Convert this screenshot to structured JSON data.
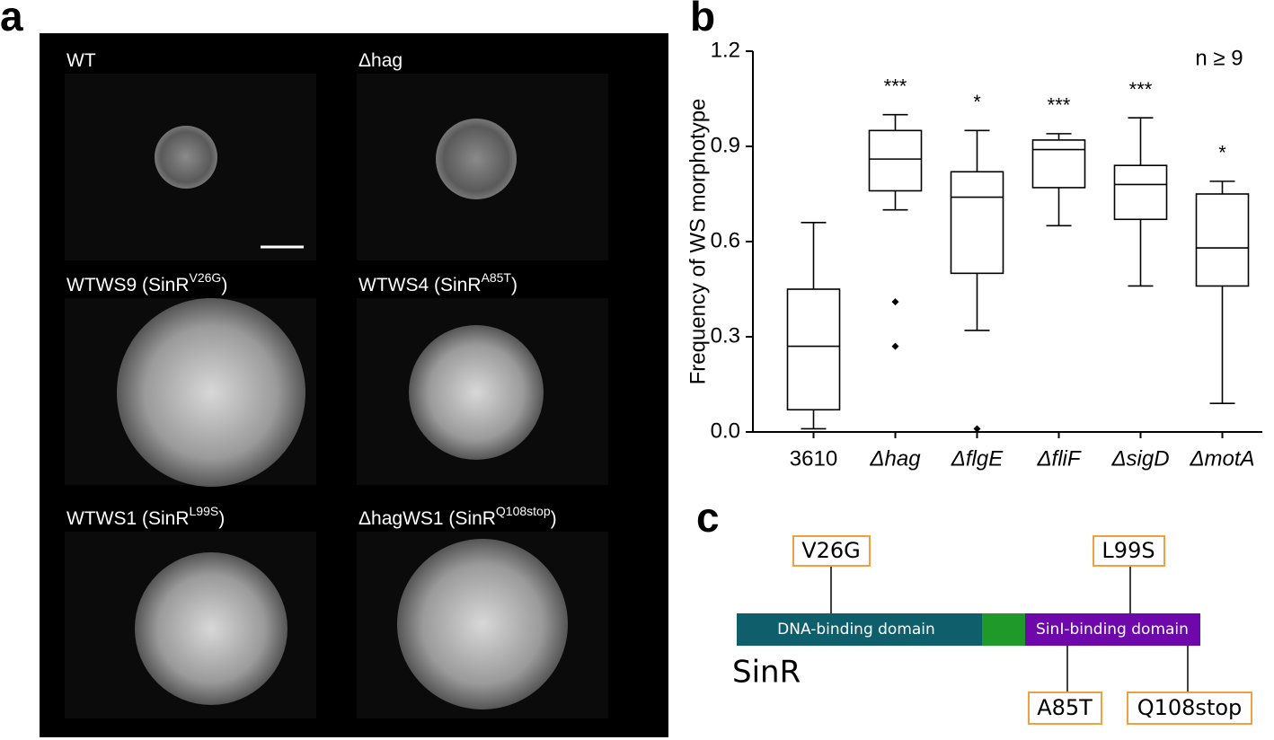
{
  "panel_a": {
    "letter": "a",
    "images": [
      {
        "label": "WT"
      },
      {
        "label": "Δhag"
      },
      {
        "label": "WTWS9 (SinR",
        "sup": "V26G",
        "end": ")"
      },
      {
        "label": "WTWS4 (SinR",
        "sup": "A85T",
        "end": ")"
      },
      {
        "label": "WTWS1 (SinR",
        "sup": "L99S",
        "end": ")"
      },
      {
        "label": "ΔhagWS1 (SinR",
        "sup": "Q108stop",
        "end": ")"
      }
    ]
  },
  "chart_data": {
    "type": "box",
    "letter": "b",
    "y_label": "Frequency of WS morphotype",
    "annotation": "n ≥ 9",
    "categories": [
      "3610",
      "Δhag",
      "ΔflgE",
      "ΔfliF",
      "ΔsigD",
      "ΔmotA"
    ],
    "significance": [
      null,
      "***",
      "*",
      "***",
      "***",
      "*"
    ],
    "boxes": [
      {
        "min": 0.01,
        "q1": 0.07,
        "median": 0.27,
        "q3": 0.45,
        "max": 0.66,
        "outliers": []
      },
      {
        "min": 0.7,
        "q1": 0.76,
        "median": 0.86,
        "q3": 0.95,
        "max": 1.0,
        "outliers": [
          0.41,
          0.27
        ]
      },
      {
        "min": 0.32,
        "q1": 0.5,
        "median": 0.74,
        "q3": 0.82,
        "max": 0.95,
        "outliers": [
          0.01
        ]
      },
      {
        "min": 0.65,
        "q1": 0.77,
        "median": 0.89,
        "q3": 0.92,
        "max": 0.94,
        "outliers": []
      },
      {
        "min": 0.46,
        "q1": 0.67,
        "median": 0.78,
        "q3": 0.84,
        "max": 0.99,
        "outliers": []
      },
      {
        "min": 0.09,
        "q1": 0.46,
        "median": 0.58,
        "q3": 0.75,
        "max": 0.79,
        "outliers": []
      }
    ],
    "color": "#000000",
    "ylim": [
      0,
      1.2
    ],
    "yticks": [
      {
        "value": 0,
        "label": "0.0"
      },
      0.3,
      0.6,
      0.9,
      1.2
    ]
  },
  "panel_c": {
    "letter": "c",
    "protein": "SinR",
    "domains": [
      "DNA-binding domain",
      "SinI-binding domain"
    ],
    "mutations": [
      "V26G",
      "L99S",
      "A85T",
      "Q108stop"
    ]
  }
}
